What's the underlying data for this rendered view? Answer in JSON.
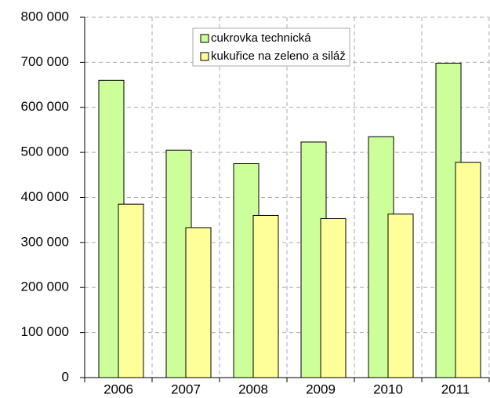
{
  "chart_data": {
    "type": "bar",
    "categories": [
      "2006",
      "2007",
      "2008",
      "2009",
      "2010",
      "2011"
    ],
    "series": [
      {
        "name": "cukrovka technická",
        "color": "#ccff99",
        "values": [
          660000,
          505000,
          475000,
          523000,
          535000,
          698000
        ]
      },
      {
        "name": "kukuřice na zeleno  a siláž",
        "color": "#ffff99",
        "values": [
          385000,
          333000,
          360000,
          353000,
          363000,
          478000
        ]
      }
    ],
    "ylim": [
      0,
      800000
    ],
    "yticks": [
      0,
      {
        "value": 100000,
        "label": "100 000"
      },
      {
        "value": 200000,
        "label": "200 000"
      },
      {
        "value": 300000,
        "label": "300 000"
      },
      {
        "value": 400000,
        "label": "400 000"
      },
      {
        "value": 500000,
        "label": "500 000"
      },
      {
        "value": 600000,
        "label": "600 000"
      },
      {
        "value": 700000,
        "label": "700 000"
      },
      {
        "value": 800000,
        "label": "800 000"
      }
    ],
    "grid": true
  }
}
